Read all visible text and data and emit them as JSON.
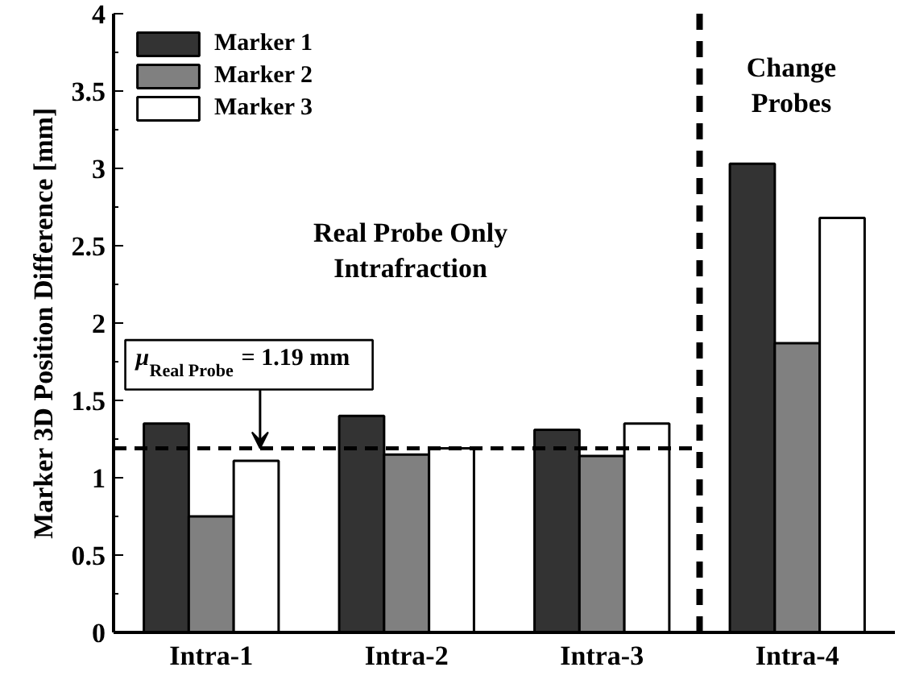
{
  "chart_data": {
    "type": "bar",
    "ylabel": "Marker 3D Position Difference [mm]",
    "categories": [
      "Intra-1",
      "Intra-2",
      "Intra-3",
      "Intra-4"
    ],
    "series": [
      {
        "name": "Marker 1",
        "color": "#333333",
        "values": [
          1.35,
          1.4,
          1.31,
          3.03
        ]
      },
      {
        "name": "Marker 2",
        "color": "#808080",
        "values": [
          0.75,
          1.15,
          1.14,
          1.87
        ]
      },
      {
        "name": "Marker 3",
        "color": "#ffffff",
        "values": [
          1.11,
          1.19,
          1.35,
          2.68
        ]
      }
    ],
    "ylim": [
      0,
      4
    ],
    "yticks": [
      0,
      0.5,
      1,
      1.5,
      2,
      2.5,
      3,
      3.5,
      4
    ],
    "ref_lines": [
      {
        "axis": "y",
        "value": 1.19,
        "label": "μ$_{Real Probe}$ = 1.19 mm",
        "line_style": "dashed",
        "color": "#000000"
      }
    ],
    "annotations": [
      "Real Probe Only\nIntrafraction",
      "Change\nProbes"
    ],
    "legend": "top left",
    "grid": false
  }
}
